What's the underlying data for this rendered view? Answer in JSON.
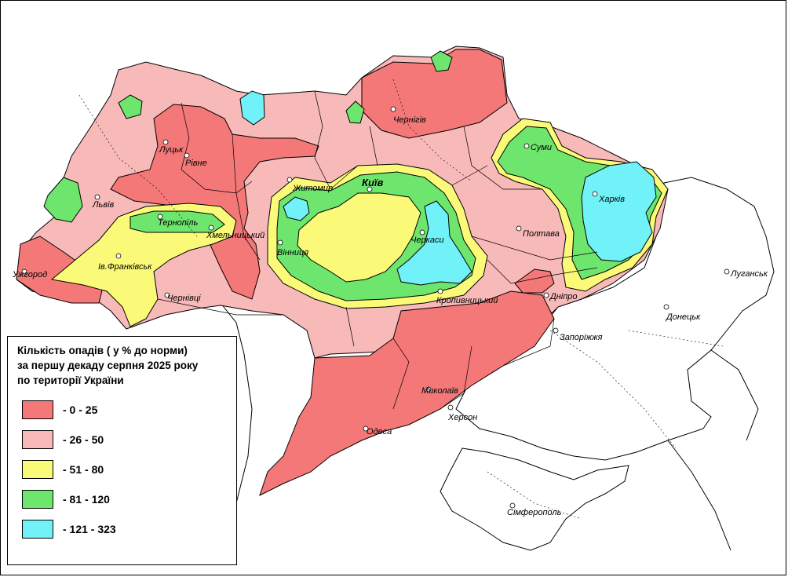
{
  "legend": {
    "title": [
      "Кількість опадів ( у % до норми)",
      "за першу декаду серпня 2025 року",
      "по території України"
    ],
    "items": [
      {
        "label": "- 0 - 25",
        "color": "#f47878"
      },
      {
        "label": "- 26 - 50",
        "color": "#f8b9b9"
      },
      {
        "label": "- 51 - 80",
        "color": "#fafa78"
      },
      {
        "label": "- 81 - 120",
        "color": "#6ee66e"
      },
      {
        "label": "- 121 - 323",
        "color": "#70f2f8"
      }
    ]
  },
  "cities": {
    "kyiv": "Київ",
    "chernihiv": "Чернігів",
    "sumy": "Суми",
    "kharkiv": "Харків",
    "luhansk": "Луганськ",
    "donetsk": "Донецьк",
    "poltava": "Полтава",
    "dnipro": "Дніпро",
    "zaporizhzhia": "Запоріжжя",
    "kropyvnytskyi": "Кропивницький",
    "cherkasy": "Черкаси",
    "zhytomyr": "Житомир",
    "vinnytsia": "Вінниця",
    "lutsk": "Луцьк",
    "rivne": "Рівне",
    "lviv": "Львів",
    "ternopil": "Тернопіль",
    "khmelnytskyi": "Хмельницький",
    "ivano_frankivsk": "Ів.Франківськ",
    "uzhhorod": "Ужгород",
    "chernivtsi": "Чернівці",
    "mykolaiv": "Миколаїв",
    "odesa": "Одеса",
    "kherson": "Херсон",
    "simferopol": "Сімферополь"
  }
}
